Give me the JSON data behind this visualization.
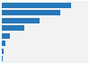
{
  "values": [
    57610,
    48761,
    31220,
    18850,
    6620,
    3040,
    1810,
    540
  ],
  "bar_color": "#2777b8",
  "background_color": "#ffffff",
  "plot_background": "#f2f2f2",
  "xlim": [
    0,
    72000
  ],
  "bar_height": 0.72,
  "figsize": [
    1.0,
    0.71
  ],
  "dpi": 100
}
